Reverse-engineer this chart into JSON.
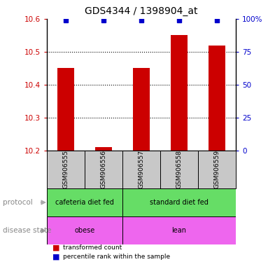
{
  "title": "GDS4344 / 1398904_at",
  "samples": [
    "GSM906555",
    "GSM906556",
    "GSM906557",
    "GSM906558",
    "GSM906559"
  ],
  "bar_values": [
    10.45,
    10.21,
    10.45,
    10.55,
    10.52
  ],
  "percentile_values": [
    99,
    99,
    99,
    99,
    99
  ],
  "ylim": [
    10.2,
    10.6
  ],
  "yticks_left": [
    10.2,
    10.3,
    10.4,
    10.5,
    10.6
  ],
  "yticks_right": [
    0,
    25,
    50,
    75,
    100
  ],
  "bar_color": "#cc0000",
  "dot_color": "#0000cc",
  "bar_width": 0.45,
  "protocol_labels": [
    "cafeteria diet fed",
    "standard diet fed"
  ],
  "protocol_color": "#66dd66",
  "disease_labels": [
    "obese",
    "lean"
  ],
  "disease_color": "#ee66ee",
  "sample_bg_color": "#c8c8c8",
  "legend_red_label": "transformed count",
  "legend_blue_label": "percentile rank within the sample",
  "title_fontsize": 10,
  "tick_fontsize": 7.5,
  "label_fontsize": 7.5
}
